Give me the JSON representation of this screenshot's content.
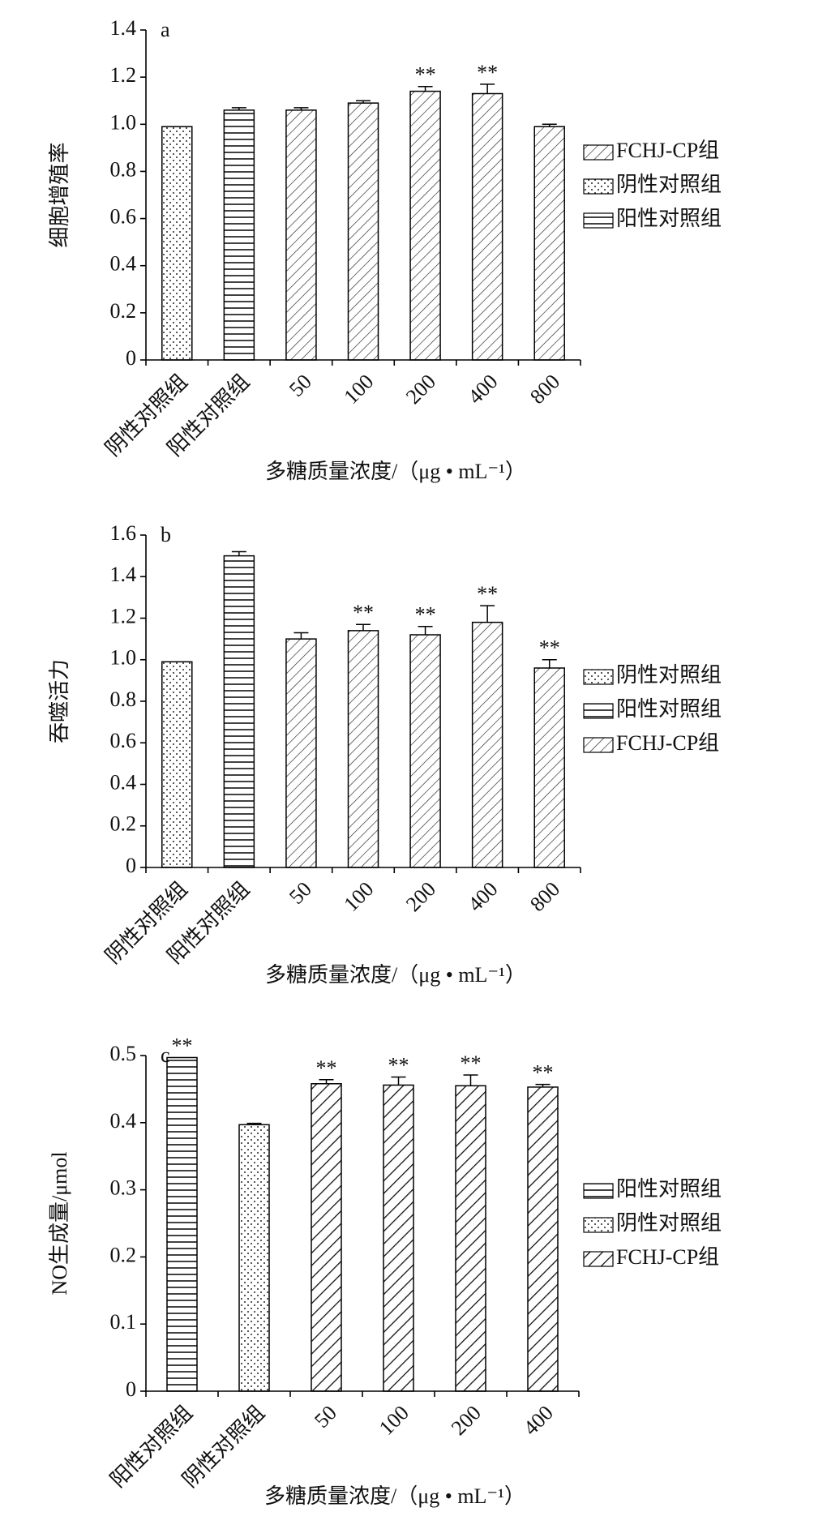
{
  "chart_data": [
    {
      "type": "bar",
      "panel": "a",
      "y_label": "细胞增殖率",
      "x_label": "多糖质量浓度/（μg • mL⁻¹）",
      "categories": [
        "阴性对照组",
        "阳性对照组",
        "50",
        "100",
        "200",
        "400",
        "800"
      ],
      "ylim": [
        0,
        1.4
      ],
      "yticks": [
        0,
        0.2,
        0.4,
        0.6,
        0.8,
        {
          "value": 1,
          "label": "1.0"
        },
        1.2,
        1.4
      ],
      "series": [
        {
          "name": "FCHJ-CP组",
          "pattern": "diagonal",
          "values": [
            null,
            null,
            1.06,
            1.09,
            1.14,
            1.13,
            0.99
          ],
          "errors": [
            null,
            null,
            0.01,
            0.01,
            0.02,
            0.04,
            0.01
          ],
          "labels": [
            null,
            null,
            null,
            null,
            "**",
            "**",
            null
          ]
        },
        {
          "name": "阴性对照组",
          "pattern": "dots",
          "values": [
            0.99,
            null,
            null,
            null,
            null,
            null,
            null
          ],
          "errors": [
            null,
            null,
            null,
            null,
            null,
            null,
            null
          ],
          "labels": [
            null,
            null,
            null,
            null,
            null,
            null,
            null
          ]
        },
        {
          "name": "阳性对照组",
          "pattern": "hlines",
          "values": [
            null,
            1.06,
            null,
            null,
            null,
            null,
            null
          ],
          "errors": [
            null,
            0.01,
            null,
            null,
            null,
            null,
            null
          ],
          "labels": [
            null,
            null,
            null,
            null,
            null,
            null,
            null
          ]
        }
      ]
    },
    {
      "type": "bar",
      "panel": "b",
      "y_label": "吞噬活力",
      "x_label": "多糖质量浓度/（μg • mL⁻¹）",
      "categories": [
        "阴性对照组",
        "阳性对照组",
        "50",
        "100",
        "200",
        "400",
        "800"
      ],
      "ylim": [
        0,
        1.6
      ],
      "yticks": [
        0,
        0.2,
        0.4,
        0.6,
        0.8,
        {
          "value": 1,
          "label": "1.0"
        },
        1.2,
        1.4,
        1.6
      ],
      "series": [
        {
          "name": "阴性对照组",
          "pattern": "dots",
          "values": [
            0.99,
            null,
            null,
            null,
            null,
            null,
            null
          ],
          "errors": [
            null,
            null,
            null,
            null,
            null,
            null,
            null
          ],
          "labels": [
            null,
            null,
            null,
            null,
            null,
            null,
            null
          ]
        },
        {
          "name": "阳性对照组",
          "pattern": "hlines",
          "values": [
            null,
            1.5,
            null,
            null,
            null,
            null,
            null
          ],
          "errors": [
            null,
            0.02,
            null,
            null,
            null,
            null,
            null
          ],
          "labels": [
            null,
            null,
            null,
            null,
            null,
            null,
            null
          ]
        },
        {
          "name": "FCHJ-CP组",
          "pattern": "diagonal",
          "values": [
            null,
            null,
            1.1,
            1.14,
            1.12,
            1.18,
            0.96
          ],
          "errors": [
            null,
            null,
            0.03,
            0.03,
            0.04,
            0.08,
            0.04
          ],
          "labels": [
            null,
            null,
            null,
            "**",
            "**",
            "**",
            "**"
          ]
        }
      ]
    },
    {
      "type": "bar",
      "panel": "c",
      "y_label": "NO生成量/μmol",
      "x_label": "多糖质量浓度/（μg • mL⁻¹）",
      "categories": [
        "阳性对照组",
        "阴性对照组",
        "50",
        "100",
        "200",
        "400"
      ],
      "ylim": [
        0,
        0.5
      ],
      "yticks": [
        0,
        0.1,
        0.2,
        0.3,
        0.4,
        0.5
      ],
      "series": [
        {
          "name": "阳性对照组",
          "pattern": "hlines",
          "values": [
            0.497,
            null,
            null,
            null,
            null,
            null
          ],
          "errors": [
            null,
            null,
            null,
            null,
            null,
            null
          ],
          "labels": [
            "**",
            null,
            null,
            null,
            null,
            null
          ]
        },
        {
          "name": "阴性对照组",
          "pattern": "dots",
          "values": [
            null,
            0.397,
            null,
            null,
            null,
            null
          ],
          "errors": [
            null,
            0.002,
            null,
            null,
            null,
            null
          ],
          "labels": [
            null,
            null,
            null,
            null,
            null,
            null
          ]
        },
        {
          "name": "FCHJ-CP组",
          "pattern": "diagonal2",
          "values": [
            null,
            null,
            0.458,
            0.456,
            0.455,
            0.453
          ],
          "errors": [
            null,
            null,
            0.006,
            0.012,
            0.016,
            0.004
          ],
          "labels": [
            null,
            null,
            "**",
            "**",
            "**",
            "**"
          ]
        }
      ]
    }
  ]
}
